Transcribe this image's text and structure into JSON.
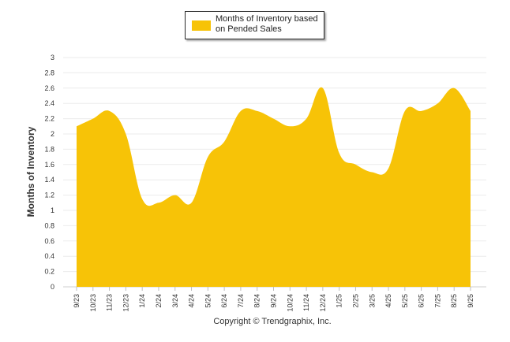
{
  "chart_data": {
    "type": "area",
    "title": "",
    "xlabel": "",
    "ylabel": "Months of Inventory",
    "ylim": [
      0,
      3
    ],
    "y_ticks": [
      "0",
      "0.2",
      "0.4",
      "0.6",
      "0.8",
      "1",
      "1.2",
      "1.4",
      "1.6",
      "1.8",
      "2",
      "2.2",
      "2.4",
      "2.6",
      "2.8",
      "3"
    ],
    "grid": true,
    "legend_position": "top-center",
    "categories": [
      "9/23",
      "10/23",
      "11/23",
      "12/23",
      "1/24",
      "2/24",
      "3/24",
      "4/24",
      "5/24",
      "6/24",
      "7/24",
      "8/24",
      "9/24",
      "10/24",
      "11/24",
      "12/24",
      "1/25",
      "2/25",
      "3/25",
      "4/25",
      "5/25",
      "6/25",
      "7/25",
      "8/25",
      "9/25"
    ],
    "series": [
      {
        "name": "Months of Inventory based on Pended Sales",
        "color": "#f7c307",
        "values": [
          2.1,
          2.2,
          2.3,
          2.0,
          1.15,
          1.1,
          1.2,
          1.1,
          1.7,
          1.9,
          2.3,
          2.3,
          2.2,
          2.1,
          2.2,
          2.6,
          1.75,
          1.6,
          1.5,
          1.55,
          2.3,
          2.3,
          2.4,
          2.6,
          2.3
        ]
      }
    ]
  },
  "legend": {
    "line1": "Months of Inventory based",
    "line2": "on Pended Sales"
  },
  "footer": {
    "copyright": "Copyright © Trendgraphix, Inc."
  }
}
